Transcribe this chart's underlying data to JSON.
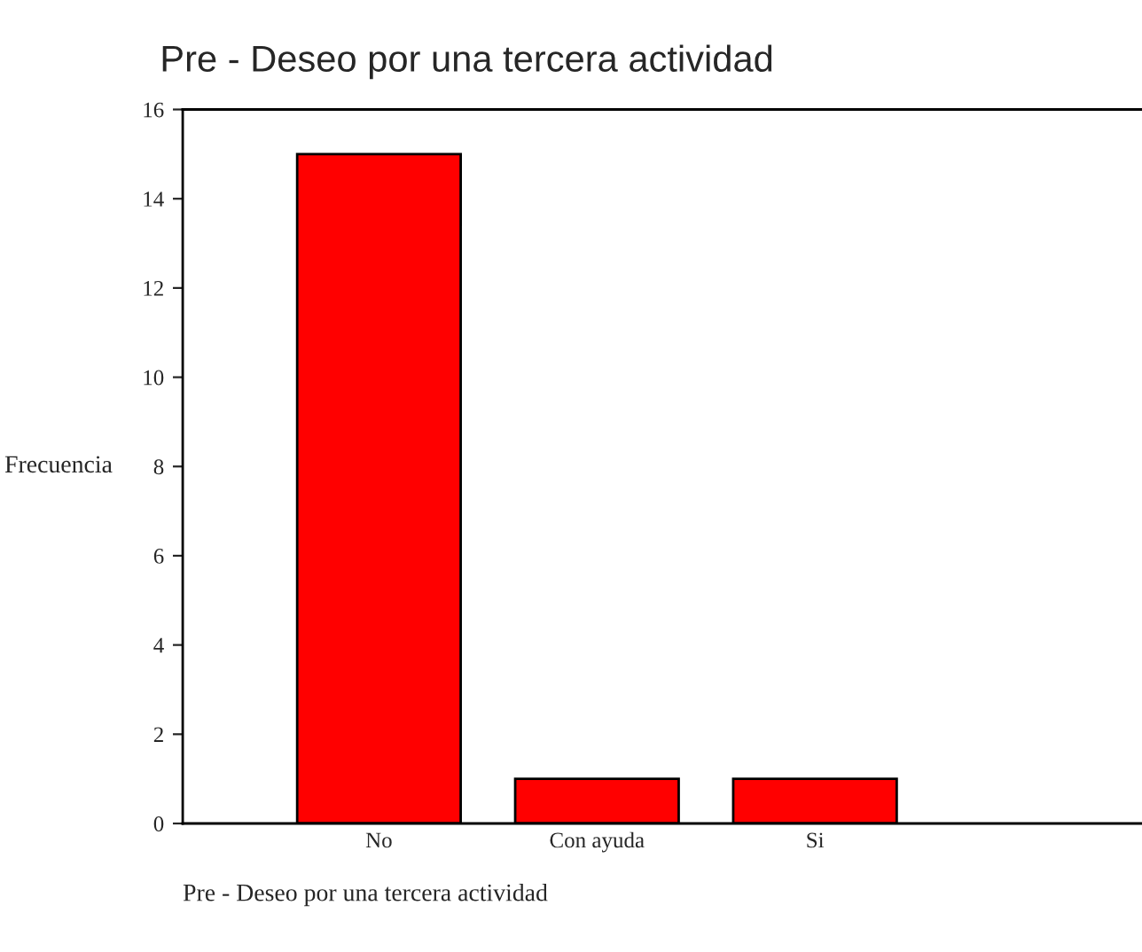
{
  "chart_data": {
    "type": "bar",
    "title": "Pre - Deseo por una tercera actividad",
    "categories": [
      "No",
      "Con ayuda",
      "Si"
    ],
    "values": [
      15,
      1,
      1
    ],
    "color": "#ff0000",
    "ylabel": "Frecuencia",
    "xlabel": "Pre - Deseo por una tercera actividad",
    "ylim": [
      0,
      16
    ],
    "yticks": [
      0,
      2,
      4,
      6,
      8,
      10,
      12,
      14,
      16
    ],
    "grid": false,
    "legend": false
  }
}
